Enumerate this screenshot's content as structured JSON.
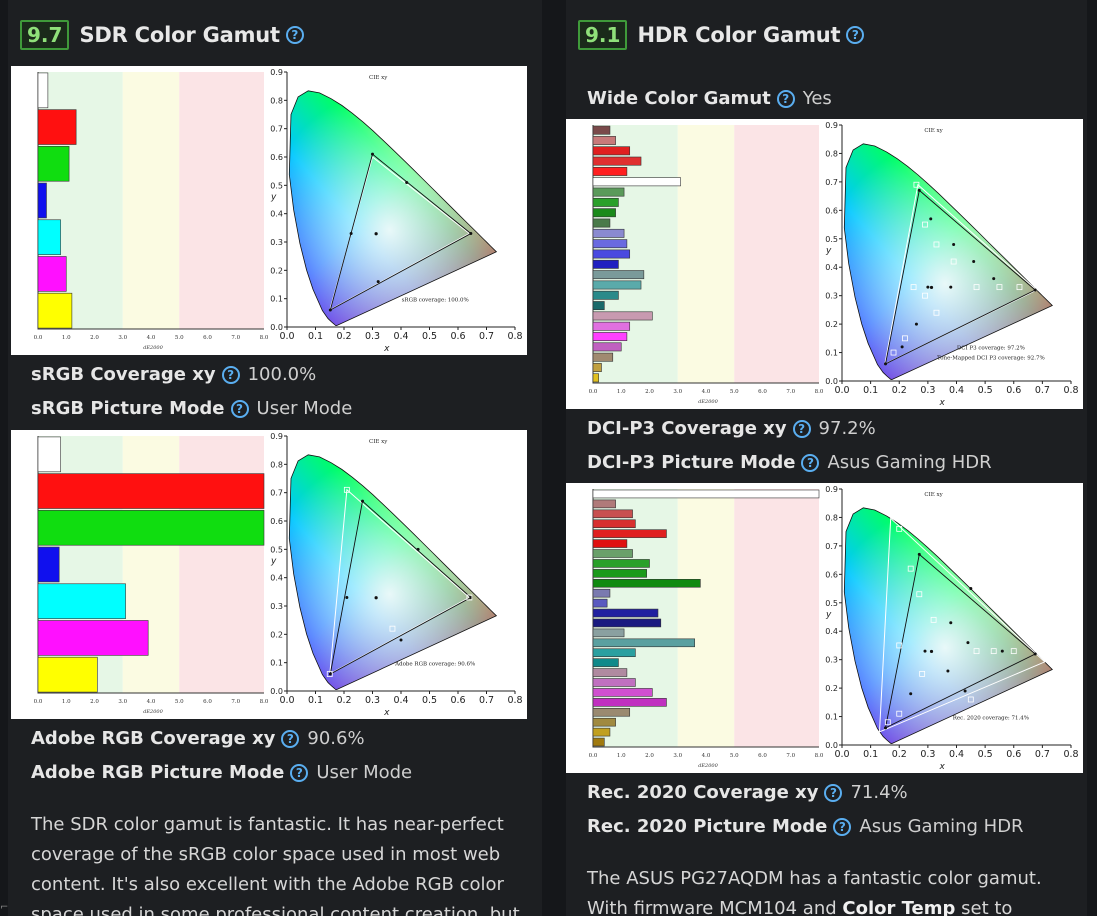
{
  "sdr": {
    "score": "9.7",
    "title": "SDR Color Gamut",
    "srgb_coverage_label": "sRGB Coverage xy",
    "srgb_coverage_value": "100.0%",
    "srgb_mode_label": "sRGB Picture Mode",
    "srgb_mode_value": "User Mode",
    "adobe_coverage_label": "Adobe RGB Coverage xy",
    "adobe_coverage_value": "90.6%",
    "adobe_mode_label": "Adobe RGB Picture Mode",
    "adobe_mode_value": "User Mode",
    "paragraph": "The SDR color gamut is fantastic. It has near-perfect coverage of the sRGB color space used in most web content. It's also excellent with the Adobe RGB color space used in some professional content creation, but"
  },
  "hdr": {
    "score": "9.1",
    "title": "HDR Color Gamut",
    "wide_label": "Wide Color Gamut",
    "wide_value": "Yes",
    "dci_coverage_label": "DCI-P3 Coverage xy",
    "dci_coverage_value": "97.2%",
    "dci_mode_label": "DCI-P3 Picture Mode",
    "dci_mode_value": "Asus Gaming HDR",
    "rec_coverage_label": "Rec. 2020 Coverage xy",
    "rec_coverage_value": "71.4%",
    "rec_mode_label": "Rec. 2020 Picture Mode",
    "rec_mode_value": "Asus Gaming HDR",
    "paragraph_start": "The ASUS PG27AQDM has a fantastic color gamut. With firmware MCM104 and ",
    "paragraph_bold": "Color Temp",
    "paragraph_end": " set to"
  },
  "help_glyph": "?",
  "charts": {
    "cie_title": "CIE xy",
    "bar_axis_label": "dE2000",
    "x_axis_label": "x",
    "y_axis_label": "y",
    "bar_ticks": [
      "0.0",
      "1.0",
      "2.0",
      "3.0",
      "4.0",
      "5.0",
      "6.0",
      "7.0",
      "8.0"
    ],
    "x_ticks": [
      "0.0",
      "0.1",
      "0.2",
      "0.3",
      "0.4",
      "0.5",
      "0.6",
      "0.7",
      "0.8"
    ],
    "y_ticks": [
      "0.0",
      "0.1",
      "0.2",
      "0.3",
      "0.4",
      "0.5",
      "0.6",
      "0.7",
      "0.8",
      "0.9"
    ],
    "srgb_note": "sRGB coverage: 100.0%",
    "adobe_note": "Adobe RGB coverage: 90.6%",
    "dci_note_1": "DCI P3 coverage: 97.2%",
    "dci_note_2": "Tone-Mapped DCI P3 coverage: 92.7%",
    "rec_note": "Rec. 2020 coverage: 71.4%"
  },
  "colors": {
    "score_border": "#3f9a3a",
    "score_text": "#8fe07a",
    "help_icon": "#5aaef0",
    "zone_good": "#e6f7e6",
    "zone_ok": "#fbfbe2",
    "zone_bad": "#fbe4e6"
  }
}
